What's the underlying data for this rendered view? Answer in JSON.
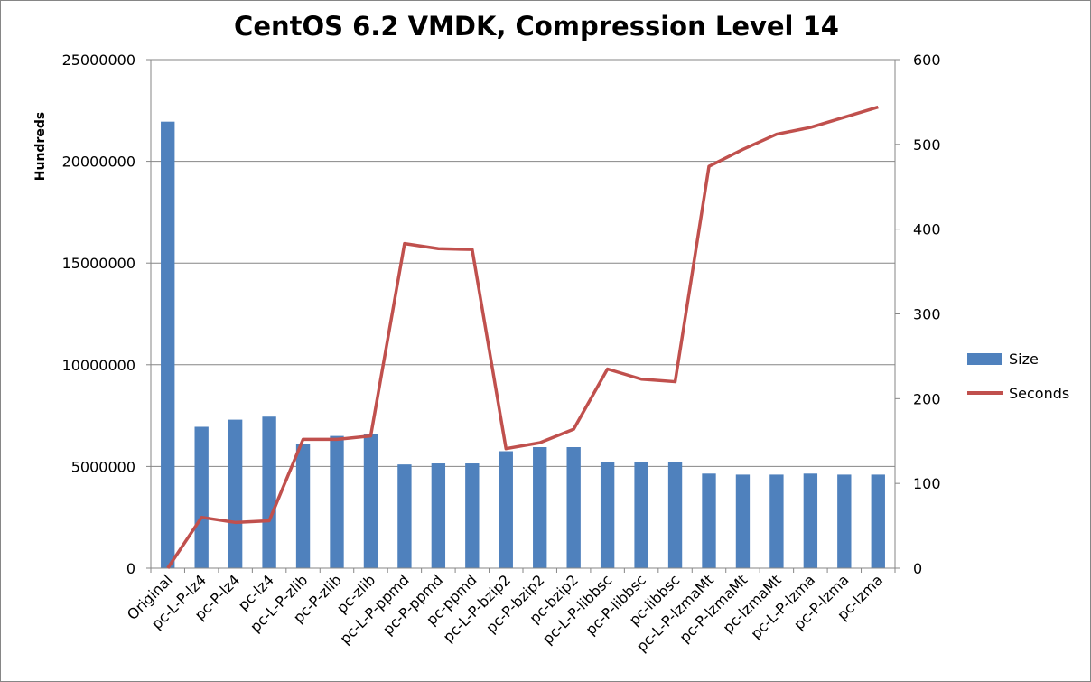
{
  "chart_data": {
    "type": "bar+line",
    "title": "CentOS 6.2 VMDK, Compression Level 14",
    "ylabel_left": "Hundreds",
    "ylabel_right": "",
    "xlabel": "",
    "categories": [
      "Original",
      "pc-L-P-lz4",
      "pc-P-lz4",
      "pc-lz4",
      "pc-L-P-zlib",
      "pc-P-zlib",
      "pc-zlib",
      "pc-L-P-ppmd",
      "pc-P-ppmd",
      "pc-ppmd",
      "pc-L-P-bzip2",
      "pc-P-bzip2",
      "pc-bzip2",
      "pc-L-P-libbsc",
      "pc-P-libbsc",
      "pc-libbsc",
      "pc-L-P-lzmaMt",
      "pc-P-lzmaMt",
      "pc-lzmaMt",
      "pc-L-P-lzma",
      "pc-P-lzma",
      "pc-lzma"
    ],
    "series": [
      {
        "name": "Size",
        "type": "bar",
        "axis": "left",
        "color": "#4F81BD",
        "values": [
          21950000,
          6950000,
          7300000,
          7450000,
          6100000,
          6500000,
          6600000,
          5100000,
          5150000,
          5150000,
          5750000,
          5950000,
          5950000,
          5200000,
          5200000,
          5200000,
          4650000,
          4600000,
          4600000,
          4650000,
          4600000,
          4600000
        ]
      },
      {
        "name": "Seconds",
        "type": "line",
        "axis": "right",
        "color": "#C0504D",
        "values": [
          0,
          60,
          54,
          56,
          152,
          152,
          156,
          383,
          377,
          376,
          141,
          148,
          164,
          235,
          223,
          220,
          474,
          494,
          512,
          520,
          532,
          544
        ]
      }
    ],
    "y_left": {
      "min": 0,
      "max": 25000000,
      "ticks": [
        "0",
        "5000000",
        "10000000",
        "15000000",
        "20000000",
        "25000000"
      ]
    },
    "y_right": {
      "min": 0,
      "max": 600,
      "ticks": [
        "0",
        "100",
        "200",
        "300",
        "400",
        "500",
        "600"
      ]
    },
    "grid": true,
    "legend_position": "right"
  }
}
